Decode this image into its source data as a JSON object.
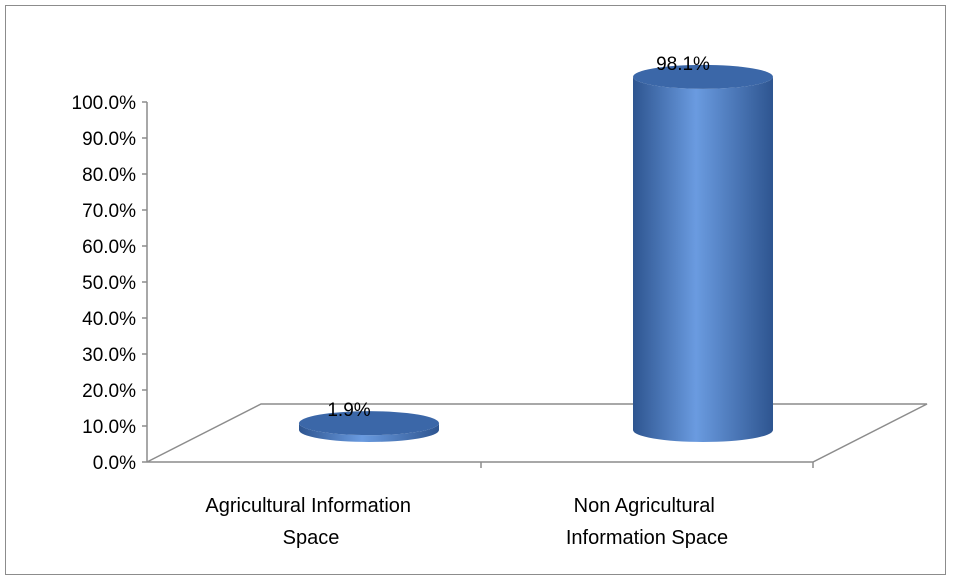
{
  "chart_data": {
    "type": "bar",
    "style": "3d-cylinder",
    "categories": [
      [
        "Agricultural Information",
        "Space"
      ],
      [
        "Non Agricultural",
        "Information Space"
      ]
    ],
    "values": [
      1.9,
      98.1
    ],
    "data_labels": [
      "1.9%",
      "98.1%"
    ],
    "ylim": [
      0,
      100
    ],
    "yticks": [
      "0.0%",
      "10.0%",
      "20.0%",
      "30.0%",
      "40.0%",
      "50.0%",
      "60.0%",
      "70.0%",
      "80.0%",
      "90.0%",
      "100.0%"
    ],
    "ytick_values": [
      0,
      10,
      20,
      30,
      40,
      50,
      60,
      70,
      80,
      90,
      100
    ],
    "grid": false,
    "legend": "none",
    "colors": {
      "bar_dark": "#2e5590",
      "bar_mid": "#4a7ec5",
      "bar_light": "#6a9be0",
      "bar_top": "#3b67a8",
      "axis": "#8c8c8c"
    }
  }
}
